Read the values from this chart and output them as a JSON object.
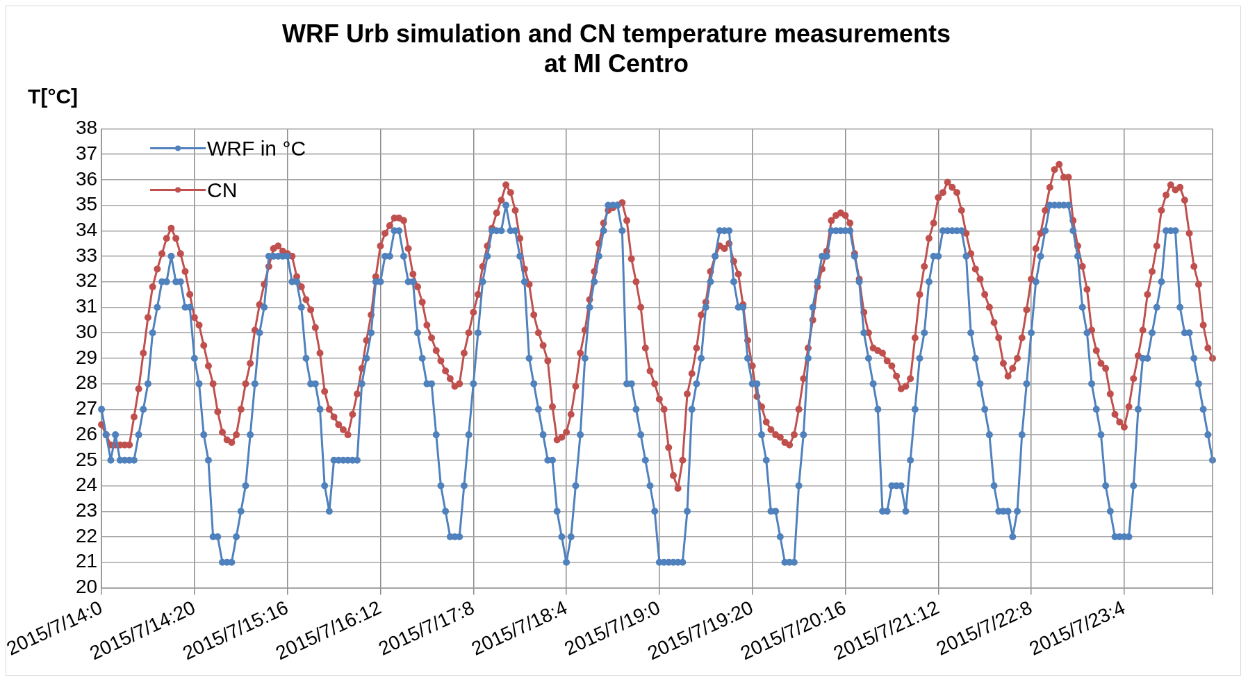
{
  "chart_data": {
    "type": "line",
    "title": "WRF Urb simulation and CN temperature measurements\nat MI Centro",
    "ylabel": "T[°C]",
    "categories": [
      "2015/7/14:0",
      null,
      null,
      null,
      null,
      null,
      null,
      null,
      null,
      null,
      null,
      null,
      null,
      null,
      null,
      null,
      null,
      null,
      null,
      null,
      "2015/7/14:20",
      null,
      null,
      null,
      null,
      null,
      null,
      null,
      null,
      null,
      null,
      null,
      null,
      null,
      null,
      null,
      null,
      null,
      null,
      null,
      "2015/7/15:16",
      null,
      null,
      null,
      null,
      null,
      null,
      null,
      null,
      null,
      null,
      null,
      null,
      null,
      null,
      null,
      null,
      null,
      null,
      null,
      "2015/7/16:12",
      null,
      null,
      null,
      null,
      null,
      null,
      null,
      null,
      null,
      null,
      null,
      null,
      null,
      null,
      null,
      null,
      null,
      null,
      null,
      "2015/7/17:8",
      null,
      null,
      null,
      null,
      null,
      null,
      null,
      null,
      null,
      null,
      null,
      null,
      null,
      null,
      null,
      null,
      null,
      null,
      null,
      "2015/7/18:4",
      null,
      null,
      null,
      null,
      null,
      null,
      null,
      null,
      null,
      null,
      null,
      null,
      null,
      null,
      null,
      null,
      null,
      null,
      null,
      "2015/7/19:0",
      null,
      null,
      null,
      null,
      null,
      null,
      null,
      null,
      null,
      null,
      null,
      null,
      null,
      null,
      null,
      null,
      null,
      null,
      null,
      "2015/7/19:20",
      null,
      null,
      null,
      null,
      null,
      null,
      null,
      null,
      null,
      null,
      null,
      null,
      null,
      null,
      null,
      null,
      null,
      null,
      null,
      "2015/7/20:16",
      null,
      null,
      null,
      null,
      null,
      null,
      null,
      null,
      null,
      null,
      null,
      null,
      null,
      null,
      null,
      null,
      null,
      null,
      null,
      "2015/7/21:12",
      null,
      null,
      null,
      null,
      null,
      null,
      null,
      null,
      null,
      null,
      null,
      null,
      null,
      null,
      null,
      null,
      null,
      null,
      null,
      "2015/7/22:8",
      null,
      null,
      null,
      null,
      null,
      null,
      null,
      null,
      null,
      null,
      null,
      null,
      null,
      null,
      null,
      null,
      null,
      null,
      null,
      "2015/7/23:4",
      null,
      null,
      null,
      null,
      null,
      null,
      null,
      null,
      null,
      null,
      null,
      null,
      null,
      null,
      null,
      null,
      null,
      null,
      null
    ],
    "ylim": [
      20,
      38
    ],
    "yticks": [
      20,
      21,
      22,
      23,
      24,
      25,
      26,
      27,
      28,
      29,
      30,
      31,
      32,
      33,
      34,
      35,
      36,
      37,
      38
    ],
    "grid": true,
    "legend": "top left",
    "marker": "circle",
    "line_style": "solid",
    "series": [
      {
        "name": "WRF in °C",
        "color": "#4f81bd",
        "values": [
          27,
          26,
          25,
          26,
          25,
          25,
          25,
          25,
          26,
          27,
          28,
          30,
          31,
          32,
          32,
          33,
          32,
          32,
          31,
          31,
          29,
          28,
          26,
          25,
          22,
          22,
          21,
          21,
          21,
          22,
          23,
          24,
          26,
          28,
          30,
          31,
          33,
          33,
          33,
          33,
          33,
          32,
          32,
          31,
          29,
          28,
          28,
          27,
          24,
          23,
          25,
          25,
          25,
          25,
          25,
          25,
          28,
          29,
          30,
          32,
          32,
          33,
          33,
          34,
          34,
          33,
          32,
          32,
          30,
          29,
          28,
          28,
          26,
          24,
          23,
          22,
          22,
          22,
          24,
          26,
          28,
          30,
          32,
          33,
          34,
          34,
          34,
          35,
          34,
          34,
          33,
          32,
          29,
          28,
          27,
          26,
          25,
          25,
          23,
          22,
          21,
          22,
          24,
          26,
          29,
          31,
          32,
          33,
          34,
          35,
          35,
          35,
          34,
          28,
          28,
          27,
          26,
          25,
          24,
          23,
          21,
          21,
          21,
          21,
          21,
          21,
          23,
          27,
          28,
          29,
          31,
          32,
          33,
          34,
          34,
          34,
          32,
          31,
          31,
          29,
          28,
          28,
          26,
          25,
          23,
          23,
          22,
          21,
          21,
          21,
          24,
          26,
          29,
          31,
          32,
          33,
          33,
          34,
          34,
          34,
          34,
          34,
          33,
          32,
          30,
          29,
          28,
          27,
          23,
          23,
          24,
          24,
          24,
          23,
          25,
          27,
          29,
          30,
          32,
          33,
          33,
          34,
          34,
          34,
          34,
          34,
          33,
          30,
          29,
          28,
          27,
          26,
          24,
          23,
          23,
          23,
          22,
          23,
          26,
          28,
          30,
          32,
          33,
          34,
          35,
          35,
          35,
          35,
          35,
          34,
          33,
          31,
          30,
          28,
          27,
          26,
          24,
          23,
          22,
          22,
          22,
          22,
          24,
          27,
          29,
          29,
          30,
          31,
          32,
          34,
          34,
          34,
          31,
          30,
          30,
          29,
          28,
          27,
          26,
          25
        ]
      },
      {
        "name": "CN",
        "color": "#c0504d",
        "values": [
          26.4,
          26.0,
          25.6,
          25.6,
          25.6,
          25.6,
          25.6,
          26.7,
          27.8,
          29.2,
          30.6,
          31.8,
          32.5,
          33.1,
          33.7,
          34.1,
          33.7,
          33.1,
          32.4,
          31.5,
          30.6,
          30.3,
          29.5,
          28.7,
          28.0,
          26.9,
          26.1,
          25.8,
          25.7,
          26.0,
          27.0,
          28.0,
          28.8,
          30.1,
          31.1,
          31.9,
          32.6,
          33.3,
          33.4,
          33.2,
          33.1,
          33.0,
          32.2,
          31.8,
          31.3,
          30.9,
          30.2,
          29.2,
          27.7,
          27.0,
          26.7,
          26.4,
          26.2,
          26.0,
          26.8,
          27.6,
          28.6,
          29.7,
          30.7,
          32.2,
          33.4,
          33.9,
          34.2,
          34.5,
          34.5,
          34.4,
          33.3,
          32.3,
          31.8,
          31.2,
          30.3,
          29.8,
          29.3,
          28.9,
          28.5,
          28.2,
          27.9,
          28.0,
          29.2,
          30.0,
          30.8,
          31.5,
          32.6,
          33.4,
          34.1,
          34.7,
          35.2,
          35.8,
          35.5,
          34.8,
          33.7,
          32.5,
          31.9,
          30.7,
          30.0,
          29.5,
          28.9,
          27.1,
          25.8,
          25.9,
          26.1,
          26.8,
          27.9,
          29.2,
          30.1,
          31.3,
          32.4,
          33.5,
          34.3,
          34.8,
          34.9,
          35.0,
          35.1,
          34.4,
          32.9,
          32.0,
          31.0,
          29.4,
          28.5,
          28.0,
          27.4,
          27.0,
          25.5,
          24.4,
          23.9,
          25.0,
          27.6,
          28.4,
          29.4,
          30.7,
          31.2,
          32.4,
          33.0,
          33.4,
          33.3,
          33.5,
          32.8,
          32.3,
          31.1,
          29.7,
          28.7,
          27.5,
          27.1,
          26.5,
          26.2,
          26.0,
          25.9,
          25.7,
          25.6,
          26.0,
          27.0,
          28.2,
          29.4,
          30.5,
          31.8,
          32.5,
          33.2,
          34.4,
          34.6,
          34.7,
          34.6,
          34.3,
          33.1,
          32.1,
          30.8,
          30.0,
          29.4,
          29.3,
          29.2,
          28.9,
          28.7,
          28.3,
          27.8,
          27.9,
          28.2,
          29.8,
          31.5,
          32.6,
          33.7,
          34.3,
          35.3,
          35.5,
          35.9,
          35.7,
          35.5,
          34.8,
          33.9,
          33.1,
          32.5,
          32.1,
          31.5,
          31.0,
          30.4,
          29.8,
          28.8,
          28.3,
          28.6,
          29.0,
          29.8,
          30.9,
          32.1,
          33.3,
          33.9,
          34.8,
          35.7,
          36.4,
          36.6,
          36.1,
          36.1,
          34.4,
          33.4,
          32.6,
          31.7,
          30.1,
          29.3,
          28.8,
          28.6,
          27.6,
          26.8,
          26.5,
          26.3,
          27.1,
          28.2,
          29.1,
          30.1,
          31.5,
          32.4,
          33.4,
          34.8,
          35.4,
          35.8,
          35.6,
          35.7,
          35.2,
          33.9,
          32.6,
          31.9,
          30.3,
          29.4,
          29.0
        ]
      }
    ]
  }
}
